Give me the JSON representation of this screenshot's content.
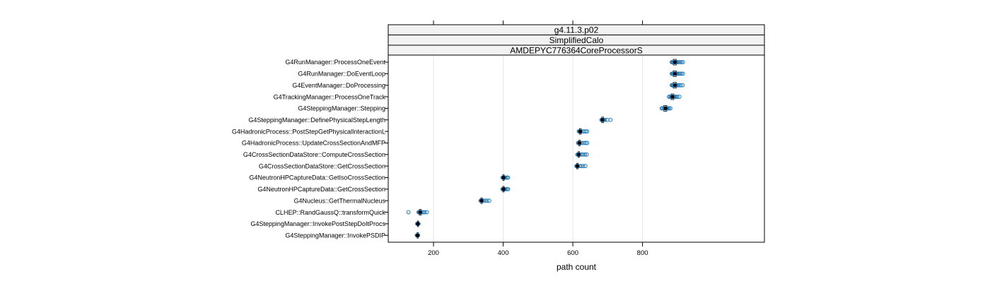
{
  "chart_data": {
    "type": "dotplot",
    "strips": [
      "g4.11.3.p02",
      "SimplifiedCalo",
      "AMDEPYC776364CoreProcessorS"
    ],
    "xlabel": "path count",
    "xlim": [
      70,
      1150
    ],
    "xticks": [
      200,
      400,
      600,
      800
    ],
    "grid": "vertical",
    "colors": {
      "points": "#1f77b4",
      "median": "#000000",
      "strip_bg": "#f2f2f2",
      "grid": "#e6e6e6"
    },
    "categories": [
      "G4RunManager::ProcessOneEvent",
      "G4RunManager::DoEventLoop",
      "G4EventManager::DoProcessing",
      "G4TrackingManager::ProcessOneTrack",
      "G4SteppingManager::Stepping",
      "G4SteppingManager::DefinePhysicalStepLength",
      "G4HadronicProcess::PostStepGetPhysicalInteractionL",
      "G4HadronicProcess::UpdateCrossSectionAndMFP",
      "G4CrossSectionDataStore::ComputeCrossSection",
      "G4CrossSectionDataStore::GetCrossSection",
      "G4NeutronHPCaptureData::GetIsoCrossSection",
      "G4NeutronHPCaptureData::GetCrossSection",
      "G4Nucleus::GetThermalNucleus",
      "CLHEP::RandGaussQ::transformQuick",
      "G4SteppingManager::InvokePostStepDoItProcs",
      "G4SteppingManager::InvokePSDIP"
    ],
    "series": [
      {
        "median": 893,
        "box": [
          888,
          897
        ],
        "points": [
          884,
          886,
          888,
          890,
          892,
          894,
          896,
          898,
          900,
          904,
          908,
          912,
          916
        ]
      },
      {
        "median": 893,
        "box": [
          888,
          897
        ],
        "points": [
          884,
          886,
          888,
          890,
          892,
          894,
          896,
          898,
          900,
          904,
          908,
          912,
          916
        ]
      },
      {
        "median": 893,
        "box": [
          888,
          897
        ],
        "points": [
          884,
          886,
          888,
          890,
          892,
          894,
          896,
          898,
          902,
          906,
          910,
          915
        ]
      },
      {
        "median": 886,
        "box": [
          882,
          890
        ],
        "points": [
          876,
          879,
          882,
          884,
          886,
          888,
          890,
          893,
          896,
          900,
          906
        ]
      },
      {
        "median": 866,
        "box": [
          861,
          870
        ],
        "points": [
          855,
          858,
          861,
          864,
          866,
          868,
          870,
          873,
          876,
          880
        ]
      },
      {
        "median": 685,
        "box": [
          683,
          688
        ],
        "points": [
          682,
          684,
          686,
          688,
          692,
          699,
          708
        ]
      },
      {
        "median": 621,
        "box": [
          619,
          624
        ],
        "points": [
          617,
          619,
          621,
          623,
          627,
          632,
          637,
          641
        ]
      },
      {
        "median": 619,
        "box": [
          617,
          621
        ],
        "points": [
          615,
          617,
          619,
          622,
          626,
          632,
          637,
          641
        ]
      },
      {
        "median": 617,
        "box": [
          615,
          619
        ],
        "points": [
          613,
          615,
          617,
          620,
          624,
          629,
          635,
          640
        ]
      },
      {
        "median": 613,
        "box": [
          611,
          615
        ],
        "points": [
          610,
          612,
          614,
          619,
          624,
          630,
          636
        ]
      },
      {
        "median": 401,
        "box": [
          399,
          403
        ],
        "points": [
          398,
          400,
          402,
          404,
          407,
          411,
          414
        ]
      },
      {
        "median": 401,
        "box": [
          399,
          403
        ],
        "points": [
          398,
          400,
          402,
          404,
          407,
          411,
          414
        ]
      },
      {
        "median": 338,
        "box": [
          336,
          340
        ],
        "points": [
          335,
          337,
          339,
          342,
          348,
          354,
          360
        ]
      },
      {
        "median": 162,
        "box": [
          159,
          165
        ],
        "points": [
          128,
          157,
          159,
          161,
          163,
          166,
          170,
          175,
          181
        ]
      },
      {
        "median": 155,
        "box": [
          154,
          157
        ],
        "points": [
          153,
          154,
          155,
          156,
          157
        ]
      },
      {
        "median": 154,
        "box": [
          153,
          156
        ],
        "points": [
          152,
          153,
          154,
          155,
          156
        ]
      }
    ]
  }
}
